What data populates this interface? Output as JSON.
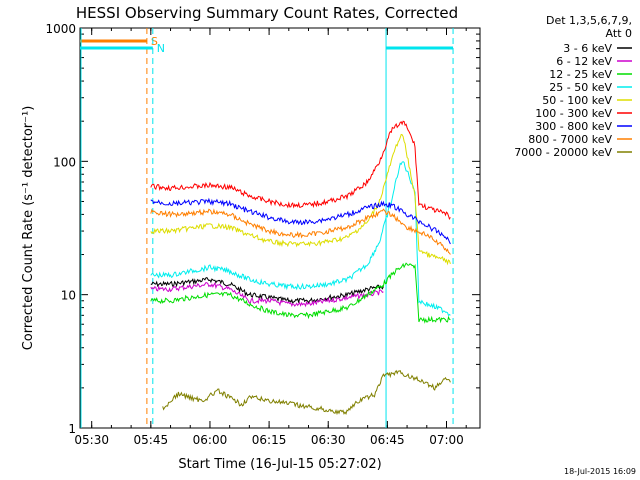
{
  "chart_data": {
    "type": "line",
    "title": "HESSI Observing Summary Count Rates, Corrected",
    "xlabel": "Start Time (16-Jul-15 05:27:02)",
    "ylabel": "Corrected Count Rate (s⁻¹ detector⁻¹)",
    "y_scale": "log",
    "ylim": [
      1,
      1000
    ],
    "x_range_minutes": [
      "05:27:02",
      "07:08:30"
    ],
    "xticks": [
      "05:30",
      "05:45",
      "06:00",
      "06:15",
      "06:30",
      "06:45",
      "07:00"
    ],
    "yticks": [
      "1",
      "10",
      "100",
      "1000"
    ],
    "grid": false,
    "legend_header": [
      "Det 1,3,5,6,7,9,",
      "Att 0"
    ],
    "legend_placement": "right",
    "footer": "18-Jul-2015 16:09",
    "markers": [
      {
        "label": "S",
        "color": "#ff7f00",
        "from": "05:27:02",
        "to": "05:44:00",
        "style": "dashed-end"
      },
      {
        "label": "N",
        "color": "#00e5ee",
        "from": "05:27:02",
        "to": "05:45:30",
        "style": "dashed-end"
      },
      {
        "label": "",
        "color": "#00e5ee",
        "from": "06:44:40",
        "to": "07:01:40",
        "style": "box"
      }
    ],
    "series": [
      {
        "name": "3 - 6 keV",
        "color": "#000000",
        "points": [
          [
            "05:45",
            12
          ],
          [
            "05:50",
            12
          ],
          [
            "06:00",
            13
          ],
          [
            "06:05",
            12
          ],
          [
            "06:10",
            10
          ],
          [
            "06:15",
            9.5
          ],
          [
            "06:20",
            9
          ],
          [
            "06:25",
            9
          ],
          [
            "06:30",
            9.5
          ],
          [
            "06:35",
            10
          ],
          [
            "06:40",
            11
          ],
          [
            "06:44",
            11.5
          ]
        ]
      },
      {
        "name": "6 - 12 keV",
        "color": "#cc00cc",
        "points": [
          [
            "05:45",
            11
          ],
          [
            "05:50",
            11
          ],
          [
            "06:00",
            12
          ],
          [
            "06:05",
            11
          ],
          [
            "06:10",
            9
          ],
          [
            "06:15",
            9
          ],
          [
            "06:20",
            8.5
          ],
          [
            "06:25",
            8.5
          ],
          [
            "06:30",
            9
          ],
          [
            "06:35",
            9.5
          ],
          [
            "06:40",
            10
          ],
          [
            "06:44",
            10.5
          ]
        ]
      },
      {
        "name": "12 - 25 keV",
        "color": "#00dd00",
        "points": [
          [
            "05:45",
            9
          ],
          [
            "05:50",
            9
          ],
          [
            "06:00",
            10
          ],
          [
            "06:05",
            10
          ],
          [
            "06:10",
            8.5
          ],
          [
            "06:15",
            7.5
          ],
          [
            "06:20",
            7
          ],
          [
            "06:25",
            7
          ],
          [
            "06:30",
            7.5
          ],
          [
            "06:35",
            8
          ],
          [
            "06:40",
            10
          ],
          [
            "06:44",
            12
          ],
          [
            "06:47",
            15
          ],
          [
            "06:50",
            17
          ],
          [
            "06:52",
            16
          ],
          [
            "06:53",
            6.5
          ],
          [
            "06:55",
            6.5
          ],
          [
            "07:00",
            6.5
          ],
          [
            "07:01",
            6.5
          ]
        ]
      },
      {
        "name": "25 - 50 keV",
        "color": "#00eeee",
        "points": [
          [
            "05:45",
            14
          ],
          [
            "05:50",
            14
          ],
          [
            "06:00",
            16
          ],
          [
            "06:05",
            15
          ],
          [
            "06:10",
            13
          ],
          [
            "06:15",
            12
          ],
          [
            "06:20",
            11.5
          ],
          [
            "06:25",
            11.5
          ],
          [
            "06:30",
            12
          ],
          [
            "06:35",
            13
          ],
          [
            "06:40",
            17
          ],
          [
            "06:43",
            25
          ],
          [
            "06:46",
            50
          ],
          [
            "06:48",
            90
          ],
          [
            "06:49",
            100
          ],
          [
            "06:52",
            60
          ],
          [
            "06:53",
            9
          ],
          [
            "06:55",
            8.5
          ],
          [
            "07:00",
            7.5
          ],
          [
            "07:01",
            7
          ]
        ]
      },
      {
        "name": "50 - 100 keV",
        "color": "#dddd00",
        "points": [
          [
            "05:45",
            30
          ],
          [
            "05:50",
            30
          ],
          [
            "06:00",
            33
          ],
          [
            "06:05",
            32
          ],
          [
            "06:10",
            28
          ],
          [
            "06:15",
            25
          ],
          [
            "06:20",
            24
          ],
          [
            "06:25",
            24
          ],
          [
            "06:30",
            25
          ],
          [
            "06:35",
            27
          ],
          [
            "06:40",
            35
          ],
          [
            "06:43",
            50
          ],
          [
            "06:46",
            100
          ],
          [
            "06:48",
            150
          ],
          [
            "06:49",
            155
          ],
          [
            "06:50",
            110
          ],
          [
            "06:52",
            55
          ],
          [
            "06:53",
            22
          ],
          [
            "06:55",
            20
          ],
          [
            "07:00",
            18
          ],
          [
            "07:01",
            17
          ]
        ]
      },
      {
        "name": "100 - 300 keV",
        "color": "#ff0000",
        "points": [
          [
            "05:45",
            65
          ],
          [
            "05:50",
            63
          ],
          [
            "06:00",
            66
          ],
          [
            "06:05",
            64
          ],
          [
            "06:10",
            55
          ],
          [
            "06:15",
            50
          ],
          [
            "06:20",
            47
          ],
          [
            "06:25",
            47
          ],
          [
            "06:30",
            50
          ],
          [
            "06:35",
            55
          ],
          [
            "06:40",
            70
          ],
          [
            "06:43",
            100
          ],
          [
            "06:46",
            170
          ],
          [
            "06:48",
            190
          ],
          [
            "06:49",
            195
          ],
          [
            "06:50",
            180
          ],
          [
            "06:52",
            130
          ],
          [
            "06:53",
            48
          ],
          [
            "06:55",
            45
          ],
          [
            "07:00",
            40
          ],
          [
            "07:01",
            38
          ]
        ]
      },
      {
        "name": "300 - 800 keV",
        "color": "#0000ff",
        "points": [
          [
            "05:45",
            50
          ],
          [
            "05:50",
            48
          ],
          [
            "06:00",
            50
          ],
          [
            "06:05",
            48
          ],
          [
            "06:10",
            42
          ],
          [
            "06:15",
            38
          ],
          [
            "06:20",
            35
          ],
          [
            "06:25",
            35
          ],
          [
            "06:30",
            37
          ],
          [
            "06:35",
            40
          ],
          [
            "06:40",
            45
          ],
          [
            "06:44",
            48
          ],
          [
            "06:46",
            47
          ],
          [
            "06:50",
            40
          ],
          [
            "06:55",
            33
          ],
          [
            "07:00",
            27
          ],
          [
            "07:01",
            24
          ]
        ]
      },
      {
        "name": "800 - 7000 keV",
        "color": "#ff7f00",
        "points": [
          [
            "05:45",
            42
          ],
          [
            "05:50",
            40
          ],
          [
            "06:00",
            42
          ],
          [
            "06:05",
            40
          ],
          [
            "06:10",
            34
          ],
          [
            "06:15",
            30
          ],
          [
            "06:20",
            28
          ],
          [
            "06:25",
            28
          ],
          [
            "06:30",
            30
          ],
          [
            "06:35",
            32
          ],
          [
            "06:40",
            38
          ],
          [
            "06:44",
            42
          ],
          [
            "06:46",
            40
          ],
          [
            "06:50",
            32
          ],
          [
            "06:55",
            28
          ],
          [
            "07:00",
            22
          ],
          [
            "07:01",
            20
          ]
        ]
      },
      {
        "name": "7000 - 20000 keV",
        "color": "#808000",
        "points": [
          [
            "05:48",
            1.4
          ],
          [
            "05:52",
            1.8
          ],
          [
            "05:58",
            1.6
          ],
          [
            "06:02",
            1.9
          ],
          [
            "06:08",
            1.5
          ],
          [
            "06:10",
            1.7
          ],
          [
            "06:34",
            1.3
          ],
          [
            "06:38",
            1.6
          ],
          [
            "06:42",
            1.8
          ],
          [
            "06:44",
            2.5
          ],
          [
            "06:48",
            2.6
          ],
          [
            "06:53",
            2.3
          ],
          [
            "06:57",
            2.0
          ],
          [
            "07:00",
            2.4
          ],
          [
            "07:01",
            2.2
          ]
        ]
      }
    ]
  }
}
